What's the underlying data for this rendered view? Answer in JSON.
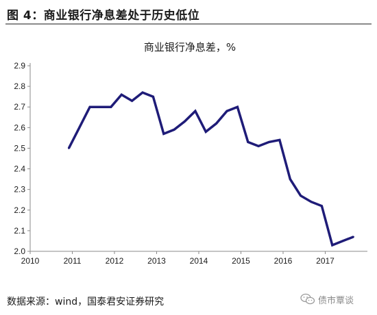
{
  "figure": {
    "title": "图 4：商业银行净息差处于历史低位",
    "source": "数据来源：wind，国泰君安证券研究"
  },
  "watermark": {
    "text": "债市覃谈",
    "icon": "wechat-icon"
  },
  "colors": {
    "series_line": "#1f1c78",
    "axis": "#8a8a8a"
  },
  "chart_data": {
    "type": "line",
    "title": "商业银行净息差，%",
    "xlabel": "",
    "ylabel": "",
    "x_ticks": [
      "2010",
      "2011",
      "2012",
      "2013",
      "2014",
      "2015",
      "2016",
      "2017"
    ],
    "y_ticks": [
      "2.0",
      "2.1",
      "2.2",
      "2.3",
      "2.4",
      "2.5",
      "2.6",
      "2.7",
      "2.8",
      "2.9"
    ],
    "xlim": [
      2010,
      2018
    ],
    "ylim": [
      2.0,
      2.9
    ],
    "grid": false,
    "legend": "none",
    "series": [
      {
        "x": [
          "2010-12",
          "2011-03",
          "2011-06",
          "2011-09",
          "2011-12",
          "2012-03",
          "2012-06",
          "2012-09",
          "2012-12",
          "2013-03",
          "2013-06",
          "2013-09",
          "2013-12",
          "2014-03",
          "2014-06",
          "2014-09",
          "2014-12",
          "2015-03",
          "2015-06",
          "2015-09",
          "2015-12",
          "2016-03",
          "2016-06",
          "2016-09",
          "2016-12",
          "2017-03",
          "2017-06",
          "2017-09"
        ],
        "values": [
          2.5,
          2.6,
          2.7,
          2.7,
          2.7,
          2.76,
          2.73,
          2.77,
          2.75,
          2.57,
          2.59,
          2.63,
          2.68,
          2.58,
          2.62,
          2.68,
          2.7,
          2.53,
          2.51,
          2.53,
          2.54,
          2.35,
          2.27,
          2.24,
          2.22,
          2.03,
          2.05,
          2.07
        ]
      }
    ]
  }
}
